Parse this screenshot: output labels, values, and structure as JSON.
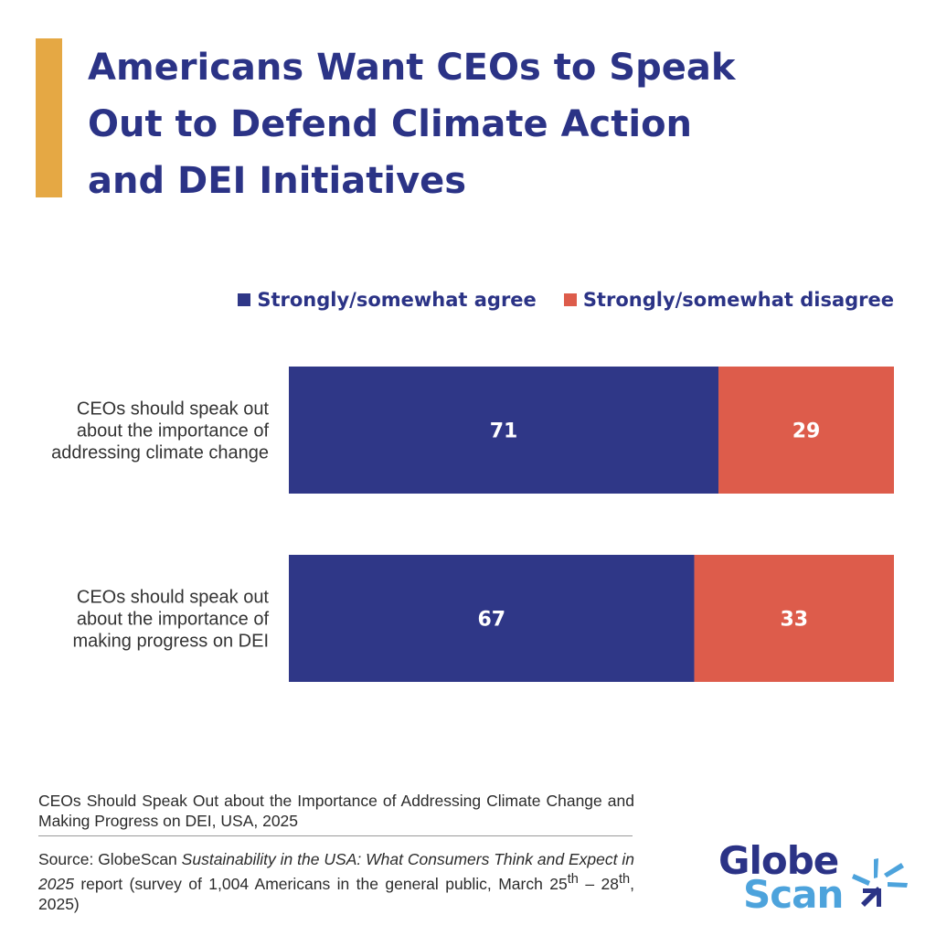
{
  "title_lines": [
    "Americans Want CEOs to Speak",
    "Out to Defend Climate Action",
    "and DEI Initiatives"
  ],
  "colors": {
    "accent": "#E5A844",
    "agree": "#2F3787",
    "disagree": "#DD5C4B",
    "title": "#2B3386",
    "logo_light": "#4DA3DC"
  },
  "legend": [
    {
      "label": "Strongly/somewhat agree",
      "color": "#2F3787"
    },
    {
      "label": "Strongly/somewhat disagree",
      "color": "#DD5C4B"
    }
  ],
  "chart_data": {
    "type": "bar",
    "orientation": "horizontal",
    "stacked": true,
    "categories": [
      [
        "CEOs should speak out",
        "about the importance of",
        "addressing climate change"
      ],
      [
        "CEOs should speak out",
        "about the importance of",
        "making progress on DEI"
      ]
    ],
    "series": [
      {
        "name": "Strongly/somewhat agree",
        "values": [
          71,
          67
        ],
        "color": "#2F3787"
      },
      {
        "name": "Strongly/somewhat disagree",
        "values": [
          29,
          33
        ],
        "color": "#DD5C4B"
      }
    ],
    "xlim": [
      0,
      100
    ],
    "grid": false,
    "legend_position": "top-right"
  },
  "footer": {
    "caption": "CEOs Should Speak Out about the Importance of Addressing Climate Change and Making Progress on DEI, USA, 2025",
    "source_prefix": "Source: GlobeScan ",
    "source_title": "Sustainability in the USA: What Consumers Think and Expect in 2025",
    "source_middle": " report (survey of 1,004 Americans in the general public, March 25",
    "sup1": "th",
    "source_dash": " – 28",
    "sup2": "th",
    "source_end": ", 2025)"
  },
  "logo": {
    "line1": "Globe",
    "line2": "Scan",
    "mark": "globescan-mark-icon"
  }
}
